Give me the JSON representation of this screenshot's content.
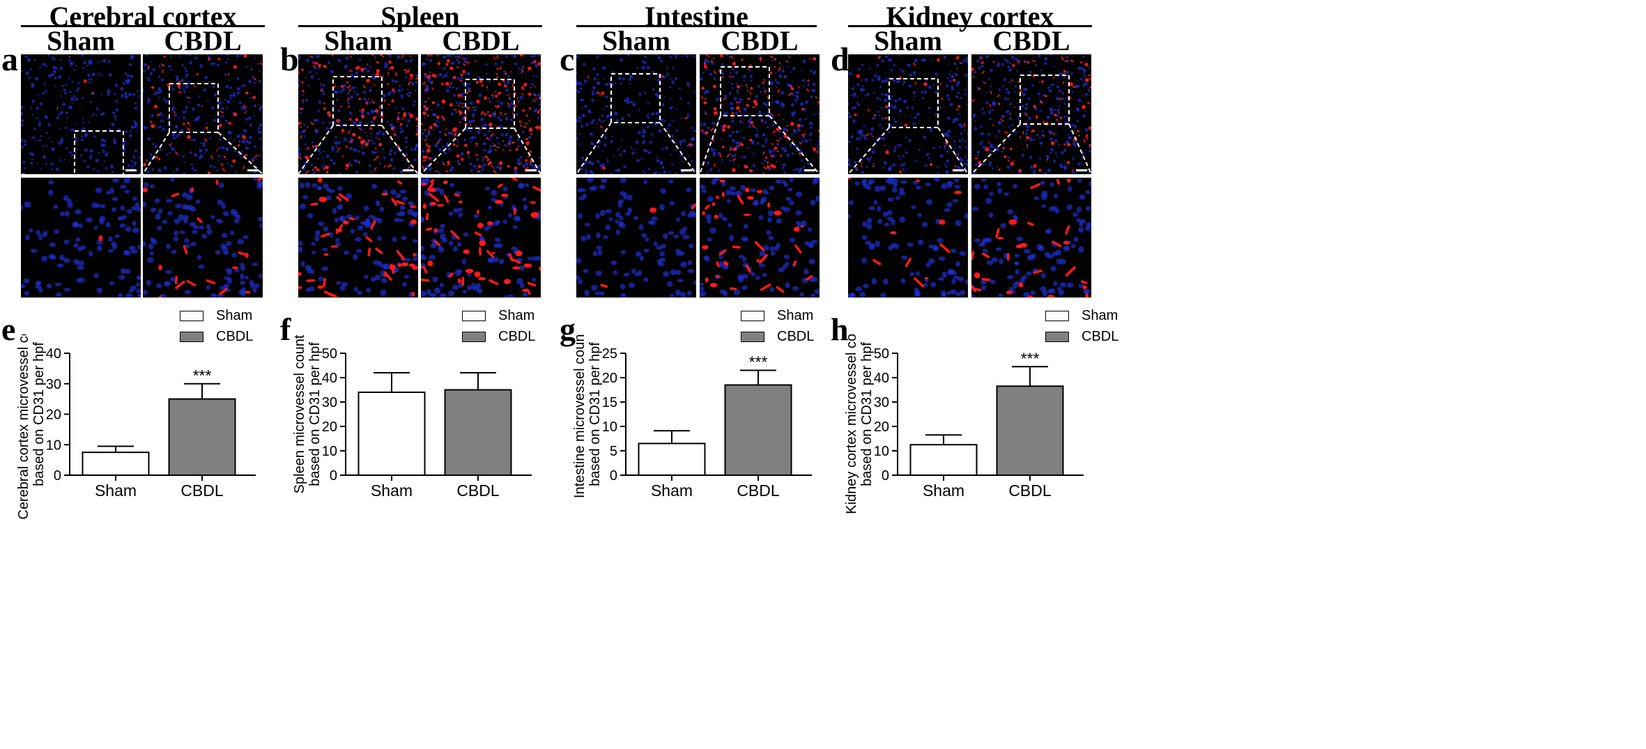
{
  "tissues": [
    {
      "letter": "a",
      "title": "Cerebral cortex",
      "groups": [
        "Sham",
        "CBDL"
      ]
    },
    {
      "letter": "b",
      "title": "Spleen",
      "groups": [
        "Sham",
        "CBDL"
      ]
    },
    {
      "letter": "c",
      "title": "Intestine",
      "groups": [
        "Sham",
        "CBDL"
      ]
    },
    {
      "letter": "d",
      "title": "Kidney cortex",
      "groups": [
        "Sham",
        "CBDL"
      ]
    }
  ],
  "colors": {
    "nuclei": "#1f2fd0",
    "vessel": "#ff1a1a",
    "background": "#000000",
    "bar_sham": "#ffffff",
    "bar_cbdl": "#808080"
  },
  "chart_data": [
    {
      "letter": "e",
      "type": "bar",
      "ylabel": [
        "Cerebral cortex microvessel count",
        "based on CD31 per hpf"
      ],
      "categories": [
        "Sham",
        "CBDL"
      ],
      "values": [
        7.5,
        25
      ],
      "errors": [
        2,
        5
      ],
      "ylim": [
        0,
        40
      ],
      "yticks": [
        0,
        10,
        20,
        30,
        40
      ],
      "significance": [
        "",
        "***"
      ],
      "legend": [
        "Sham",
        "CBDL"
      ]
    },
    {
      "letter": "f",
      "type": "bar",
      "ylabel": [
        "Spleen microvessel count",
        "based on CD31 per hpf"
      ],
      "categories": [
        "Sham",
        "CBDL"
      ],
      "values": [
        34,
        35
      ],
      "errors": [
        8,
        7
      ],
      "ylim": [
        0,
        50
      ],
      "yticks": [
        0,
        10,
        20,
        30,
        40,
        50
      ],
      "significance": [
        "",
        ""
      ],
      "legend": [
        "Sham",
        "CBDL"
      ]
    },
    {
      "letter": "g",
      "type": "bar",
      "ylabel": [
        "Intestine microvessel count",
        "based on CD31 per hpf"
      ],
      "categories": [
        "Sham",
        "CBDL"
      ],
      "values": [
        6.5,
        18.5
      ],
      "errors": [
        2.6,
        3
      ],
      "ylim": [
        0,
        25
      ],
      "yticks": [
        0,
        5,
        10,
        15,
        20,
        25
      ],
      "significance": [
        "",
        "***"
      ],
      "legend": [
        "Sham",
        "CBDL"
      ]
    },
    {
      "letter": "h",
      "type": "bar",
      "ylabel": [
        "Kidney cortex microvessel count",
        "based on CD31 per hpf"
      ],
      "categories": [
        "Sham",
        "CBDL"
      ],
      "values": [
        12.5,
        36.5
      ],
      "errors": [
        4,
        8
      ],
      "ylim": [
        0,
        50
      ],
      "yticks": [
        0,
        10,
        20,
        30,
        40,
        50
      ],
      "significance": [
        "",
        "***"
      ],
      "legend": [
        "Sham",
        "CBDL"
      ]
    }
  ]
}
